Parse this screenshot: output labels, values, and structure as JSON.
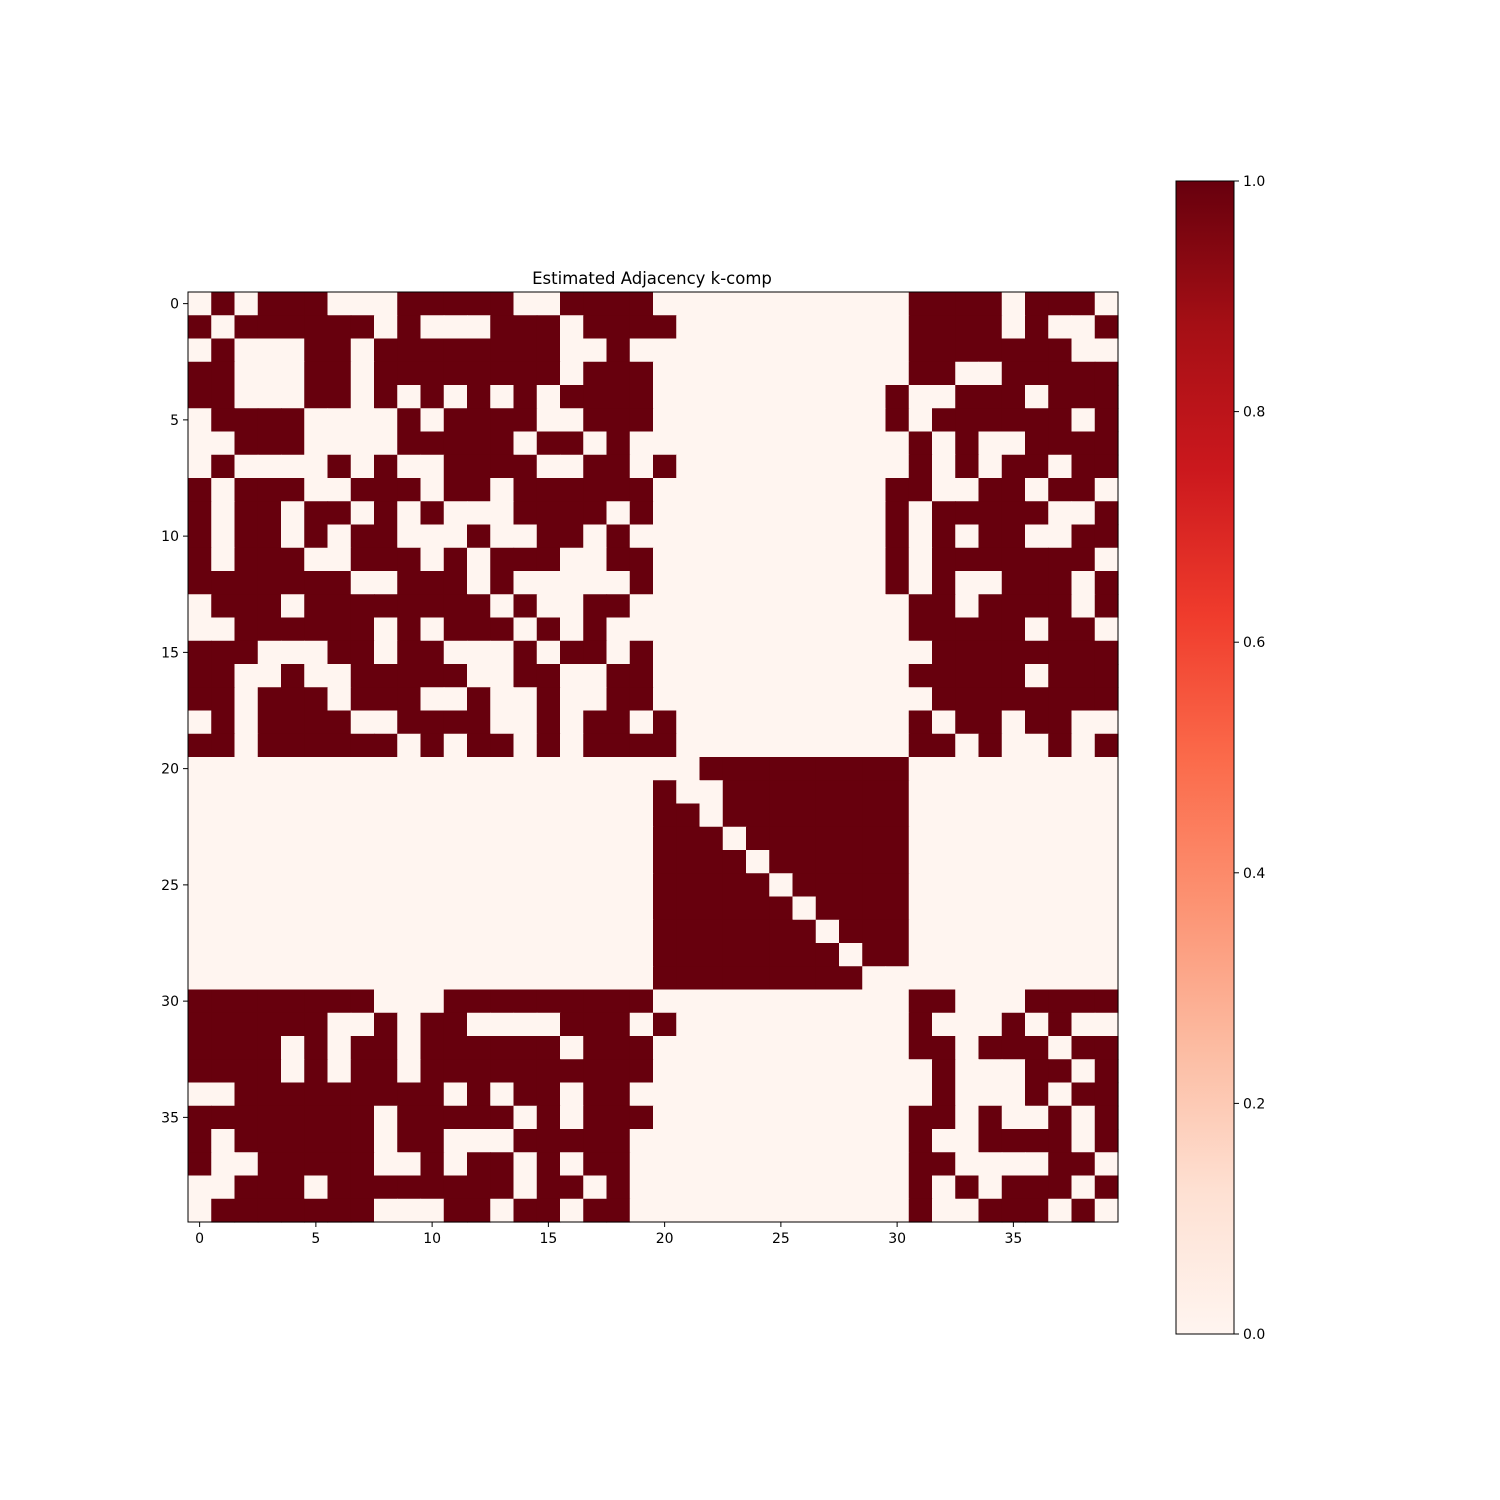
{
  "chart_data": {
    "type": "heatmap",
    "title": "Estimated Adjacency k-comp",
    "xlabel": "",
    "ylabel": "",
    "n": 40,
    "x_ticks": [
      0,
      5,
      10,
      15,
      20,
      25,
      30,
      35
    ],
    "y_ticks": [
      0,
      5,
      10,
      15,
      20,
      25,
      30,
      35
    ],
    "colormap": "Reds",
    "color_low": "#fff5f0",
    "color_high": "#67000d",
    "colorbar": {
      "range": [
        0.0,
        1.0
      ],
      "ticks": [
        "0.0",
        "0.2",
        "0.4",
        "0.6",
        "0.8",
        "1.0"
      ],
      "placement": "right"
    },
    "matrix": [
      "0101110001111100111100000000000111101110",
      "1011111101000111011110000000000111101001",
      "0100011011111111001000000000000111111100",
      "1100011011111111011100000000000110011111",
      "1100011010101010111100000000001001110111",
      "0111100001011110011100000000001011111101",
      "0011100001111101101000000000000101001111",
      "0100001010011110011010000000000101011011",
      "1011100111011011111100000000001100110110",
      "1011011010100011110100000000001011111001",
      "1011010110001001101000000000001010110011",
      "1011100111010111001100000000001011111110",
      "1111111001110100000100000000001010011101",
      "0111011111111010011000000000000110111101",
      "0011111101011101010000000000000111110110",
      "1110001101100010110100000000000011111111",
      "1100100111110011001100000000000111110111",
      "1101110111001001001100000000000011111111",
      "0101111001111001011010000000000101101100",
      "1101111110101101011110000000000110100101",
      "0000000000000000000000111111111000000000",
      "0000000000000000000010011111111000000000",
      "0000000000000000000011011111111000000000",
      "0000000000000000000011101111111000000000",
      "0000000000000000000011110111111000000000",
      "0000000000000000000011111011111000000000",
      "0000000000000000000011111101111000000000",
      "0000000000000000000011111110111000000000",
      "0000000000000000000011111111011000000000",
      "0000000000000000000011111111100000000000",
      "1111111100011111111100000000000110001111",
      "1111110010110000111010000000000100010100",
      "1111010110111111011100000000000110111011",
      "1111010110111111111100000000000010001101",
      "0011111111101011011000000000000010001011",
      "1111111101111101011100000000000110100101",
      "1011111101100011111000000000000100111101",
      "1001111100101101011000000000000110000110",
      "0011101111111101101000000000000101011101",
      "0111111100011011011000000000000100111010"
    ]
  }
}
